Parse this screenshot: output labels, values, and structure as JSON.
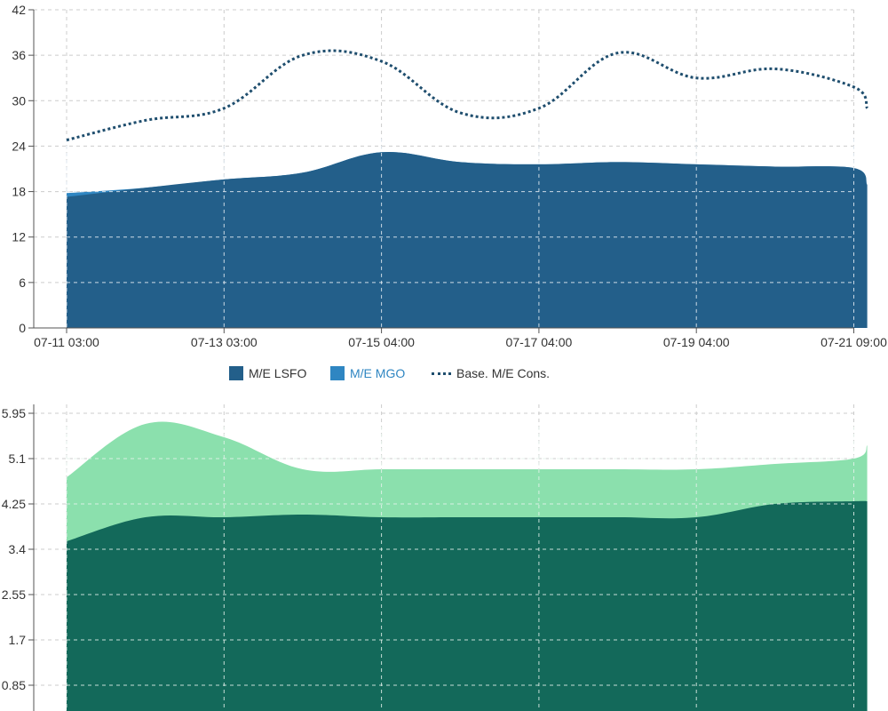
{
  "colors": {
    "lsfo": "#235f8a",
    "mgo": "#2f86c2",
    "baseline": "#1f4e6e",
    "bottom_upper": "#8be0ad",
    "bottom_lower": "#13695a",
    "grid": "#cccccc",
    "axis": "#555555"
  },
  "chart_data": [
    {
      "type": "area",
      "title": "",
      "xlabel": "",
      "ylabel": "",
      "ylim": [
        0,
        42
      ],
      "yticks": [
        "0",
        "6",
        "12",
        "18",
        "24",
        "30",
        "36",
        "42"
      ],
      "x_tick_labels": [
        "07-11 03:00",
        "07-13 03:00",
        "07-15 04:00",
        "07-17 04:00",
        "07-19 04:00",
        "07-21 09:00"
      ],
      "x_tick_days": [
        0,
        2,
        4,
        6,
        8,
        10
      ],
      "grid": true,
      "legend_position": "bottom",
      "series": [
        {
          "name": "M/E LSFO",
          "kind": "stacked-area",
          "points": [
            [
              0,
              17.3
            ],
            [
              1,
              18.5
            ],
            [
              2,
              19.6
            ],
            [
              3,
              20.5
            ],
            [
              4,
              23.2
            ],
            [
              5,
              21.9
            ],
            [
              6,
              21.6
            ],
            [
              7,
              21.9
            ],
            [
              8,
              21.6
            ],
            [
              9,
              21.3
            ],
            [
              10,
              21.1
            ],
            [
              10.17,
              18.9
            ]
          ]
        },
        {
          "name": "M/E MGO",
          "kind": "stacked-area",
          "points": [
            [
              0,
              0.5
            ],
            [
              0.4,
              0.1
            ],
            [
              1,
              0
            ],
            [
              10.17,
              0
            ]
          ]
        },
        {
          "name": "Base. M/E Cons.",
          "kind": "dotted-line",
          "points": [
            [
              0,
              24.8
            ],
            [
              1,
              27.4
            ],
            [
              2,
              29.0
            ],
            [
              3,
              36.0
            ],
            [
              4,
              35.2
            ],
            [
              5,
              28.4
            ],
            [
              6,
              29.0
            ],
            [
              7,
              36.3
            ],
            [
              8,
              33.0
            ],
            [
              9,
              34.2
            ],
            [
              10,
              31.8
            ],
            [
              10.17,
              29.0
            ]
          ]
        }
      ]
    },
    {
      "type": "area",
      "title": "",
      "xlabel": "",
      "ylabel": "",
      "ylim": [
        0,
        5.95
      ],
      "yticks": [
        "0.85",
        "1.7",
        "2.55",
        "3.4",
        "4.25",
        "5.1",
        "5.95"
      ],
      "grid": true,
      "series": [
        {
          "kind": "stacked-area",
          "points": [
            [
              0,
              3.55
            ],
            [
              1,
              4.0
            ],
            [
              2,
              4.0
            ],
            [
              3,
              4.05
            ],
            [
              4,
              4.0
            ],
            [
              5,
              4.0
            ],
            [
              6,
              4.0
            ],
            [
              7,
              4.0
            ],
            [
              8,
              4.0
            ],
            [
              9,
              4.25
            ],
            [
              10,
              4.3
            ],
            [
              10.17,
              4.3
            ]
          ]
        },
        {
          "kind": "stacked-area",
          "points": [
            [
              0,
              1.2
            ],
            [
              1,
              1.75
            ],
            [
              2,
              1.5
            ],
            [
              3,
              0.85
            ],
            [
              4,
              0.9
            ],
            [
              5,
              0.9
            ],
            [
              6,
              0.9
            ],
            [
              7,
              0.9
            ],
            [
              8,
              0.9
            ],
            [
              9,
              0.75
            ],
            [
              10,
              0.8
            ],
            [
              10.17,
              1.05
            ]
          ]
        }
      ]
    }
  ]
}
